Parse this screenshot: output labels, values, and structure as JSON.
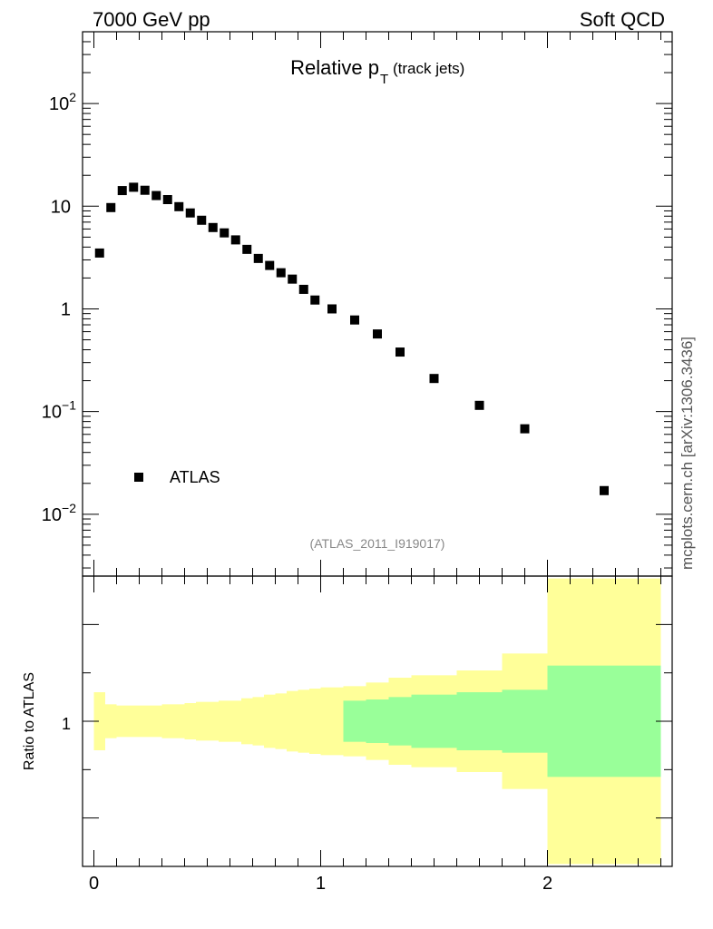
{
  "header": {
    "energy": "7000 GeV pp",
    "process": "Soft QCD"
  },
  "side_label": "mcplots.cern.ch [arXiv:1306.3436]",
  "chart_data": [
    {
      "type": "scatter",
      "title_main": "Relative p",
      "title_sub": "T",
      "title_note": "(track jets)",
      "analysis_id": "(ATLAS_2011_I919017)",
      "yscale": "log",
      "ylim": [
        0.0025,
        500
      ],
      "xlim": [
        -0.05,
        2.55
      ],
      "ytick_labels": [
        "10^-2",
        "10^-1",
        "1",
        "10",
        "10^2"
      ],
      "legend_entry": "ATLAS",
      "legend_position": "lower-left",
      "series": [
        {
          "name": "ATLAS",
          "x": [
            0.025,
            0.075,
            0.125,
            0.175,
            0.225,
            0.275,
            0.325,
            0.375,
            0.425,
            0.475,
            0.525,
            0.575,
            0.625,
            0.675,
            0.725,
            0.775,
            0.825,
            0.875,
            0.925,
            0.975,
            1.05,
            1.15,
            1.25,
            1.35,
            1.5,
            1.7,
            1.9,
            2.25
          ],
          "y": [
            3.5,
            9.7,
            14.2,
            15.3,
            14.3,
            12.7,
            11.6,
            9.9,
            8.6,
            7.3,
            6.2,
            5.5,
            4.7,
            3.8,
            3.1,
            2.65,
            2.25,
            1.95,
            1.55,
            1.22,
            1.0,
            0.78,
            0.57,
            0.38,
            0.21,
            0.115,
            0.068,
            0.017
          ]
        }
      ]
    },
    {
      "type": "area",
      "ylabel": "Ratio to ATLAS",
      "ylim": [
        0.4,
        1.6
      ],
      "xlim": [
        -0.05,
        2.55
      ],
      "ytick_labels": [
        "1"
      ],
      "xtick_labels": [
        "0",
        "1",
        "2"
      ],
      "colors": {
        "stat": "#99ff99",
        "total": "#ffff99"
      },
      "bins": [
        {
          "lo": 0.0,
          "hi": 0.05,
          "tot_lo": 0.88,
          "tot_hi": 1.12
        },
        {
          "lo": 0.05,
          "hi": 0.1,
          "tot_lo": 0.93,
          "tot_hi": 1.07
        },
        {
          "lo": 0.1,
          "hi": 0.15,
          "tot_lo": 0.935,
          "tot_hi": 1.065
        },
        {
          "lo": 0.15,
          "hi": 0.2,
          "tot_lo": 0.935,
          "tot_hi": 1.065
        },
        {
          "lo": 0.2,
          "hi": 0.25,
          "tot_lo": 0.935,
          "tot_hi": 1.065
        },
        {
          "lo": 0.25,
          "hi": 0.3,
          "tot_lo": 0.935,
          "tot_hi": 1.065
        },
        {
          "lo": 0.3,
          "hi": 0.35,
          "tot_lo": 0.93,
          "tot_hi": 1.07
        },
        {
          "lo": 0.35,
          "hi": 0.4,
          "tot_lo": 0.93,
          "tot_hi": 1.07
        },
        {
          "lo": 0.4,
          "hi": 0.45,
          "tot_lo": 0.925,
          "tot_hi": 1.075
        },
        {
          "lo": 0.45,
          "hi": 0.5,
          "tot_lo": 0.92,
          "tot_hi": 1.08
        },
        {
          "lo": 0.5,
          "hi": 0.55,
          "tot_lo": 0.92,
          "tot_hi": 1.08
        },
        {
          "lo": 0.55,
          "hi": 0.6,
          "tot_lo": 0.915,
          "tot_hi": 1.085
        },
        {
          "lo": 0.6,
          "hi": 0.65,
          "tot_lo": 0.915,
          "tot_hi": 1.085
        },
        {
          "lo": 0.65,
          "hi": 0.7,
          "tot_lo": 0.905,
          "tot_hi": 1.095
        },
        {
          "lo": 0.7,
          "hi": 0.75,
          "tot_lo": 0.9,
          "tot_hi": 1.1
        },
        {
          "lo": 0.75,
          "hi": 0.8,
          "tot_lo": 0.89,
          "tot_hi": 1.11
        },
        {
          "lo": 0.8,
          "hi": 0.85,
          "tot_lo": 0.885,
          "tot_hi": 1.115
        },
        {
          "lo": 0.85,
          "hi": 0.9,
          "tot_lo": 0.875,
          "tot_hi": 1.125
        },
        {
          "lo": 0.9,
          "hi": 0.95,
          "tot_lo": 0.87,
          "tot_hi": 1.13
        },
        {
          "lo": 0.95,
          "hi": 1.0,
          "tot_lo": 0.865,
          "tot_hi": 1.135
        },
        {
          "lo": 1.0,
          "hi": 1.1,
          "tot_lo": 0.86,
          "tot_hi": 1.14
        },
        {
          "lo": 1.1,
          "hi": 1.2,
          "tot_lo": 0.855,
          "tot_hi": 1.145,
          "stat_lo": 0.915,
          "stat_hi": 1.085
        },
        {
          "lo": 1.2,
          "hi": 1.3,
          "tot_lo": 0.84,
          "tot_hi": 1.16,
          "stat_lo": 0.91,
          "stat_hi": 1.09
        },
        {
          "lo": 1.3,
          "hi": 1.4,
          "tot_lo": 0.82,
          "tot_hi": 1.18,
          "stat_lo": 0.9,
          "stat_hi": 1.1
        },
        {
          "lo": 1.4,
          "hi": 1.6,
          "tot_lo": 0.81,
          "tot_hi": 1.19,
          "stat_lo": 0.89,
          "stat_hi": 1.11
        },
        {
          "lo": 1.6,
          "hi": 1.8,
          "tot_lo": 0.79,
          "tot_hi": 1.21,
          "stat_lo": 0.88,
          "stat_hi": 1.12
        },
        {
          "lo": 1.8,
          "hi": 2.0,
          "tot_lo": 0.72,
          "tot_hi": 1.28,
          "stat_lo": 0.87,
          "stat_hi": 1.13
        },
        {
          "lo": 2.0,
          "hi": 2.5,
          "tot_lo": 0.41,
          "tot_hi": 1.59,
          "stat_lo": 0.77,
          "stat_hi": 1.23
        }
      ]
    }
  ]
}
